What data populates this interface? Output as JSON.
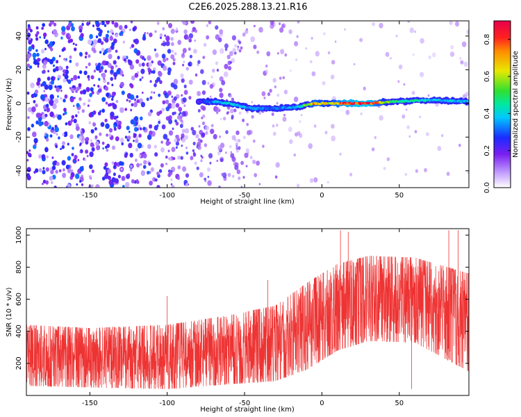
{
  "figure_title": "C2E6.2025.288.13.21.R16",
  "colors": {
    "signal": "#ee3333",
    "scatter": "#7a1ff0",
    "axis": "#000000"
  },
  "chart_data": [
    {
      "type": "heatmap",
      "xlabel": "Height of straight line (km)",
      "ylabel": "Frequency (Hz)",
      "xlim": [
        -191,
        95
      ],
      "ylim": [
        -50,
        49
      ],
      "xticks": [
        -150,
        -100,
        -50,
        0,
        50
      ],
      "yticks": [
        -40,
        -20,
        0,
        20,
        40
      ],
      "colorbar": {
        "label": "Normalized spectral amplitude",
        "range": [
          0.0,
          0.9
        ],
        "ticks": [
          0.0,
          0.2,
          0.4,
          0.6,
          0.8
        ]
      },
      "ridge": [
        {
          "x": -80,
          "freq": 1,
          "amp": 0.2
        },
        {
          "x": -70,
          "freq": 1,
          "amp": 0.35
        },
        {
          "x": -60,
          "freq": 0,
          "amp": 0.4
        },
        {
          "x": -45,
          "freq": -3,
          "amp": 0.35
        },
        {
          "x": -30,
          "freq": -3,
          "amp": 0.3
        },
        {
          "x": -15,
          "freq": -2,
          "amp": 0.4
        },
        {
          "x": -5,
          "freq": 0,
          "amp": 0.7
        },
        {
          "x": 5,
          "freq": 0,
          "amp": 0.6
        },
        {
          "x": 15,
          "freq": 0,
          "amp": 0.8
        },
        {
          "x": 30,
          "freq": 0,
          "amp": 0.85
        },
        {
          "x": 45,
          "freq": 1,
          "amp": 0.5
        },
        {
          "x": 70,
          "freq": 2,
          "amp": 0.4
        },
        {
          "x": 95,
          "freq": 1,
          "amp": 0.35
        }
      ],
      "scatter_density": [
        {
          "x": -190,
          "level": 1.0
        },
        {
          "x": -120,
          "level": 0.9
        },
        {
          "x": -75,
          "level": 0.55
        },
        {
          "x": -30,
          "level": 0.2
        },
        {
          "x": 0,
          "level": 0.05
        },
        {
          "x": 95,
          "level": 0.04
        }
      ]
    },
    {
      "type": "line",
      "xlabel": "Height of straight line (km)",
      "ylabel": "SNR (10 * v/v)",
      "xlim": [
        -191,
        95
      ],
      "ylim": [
        0,
        1040
      ],
      "xticks": [
        -150,
        -100,
        -50,
        0,
        50
      ],
      "yticks": [
        200,
        400,
        600,
        800,
        1000
      ],
      "envelope": [
        {
          "x": -191,
          "low": 60,
          "high": 440
        },
        {
          "x": -150,
          "low": 50,
          "high": 420
        },
        {
          "x": -100,
          "low": 40,
          "high": 440
        },
        {
          "x": -60,
          "low": 70,
          "high": 500
        },
        {
          "x": -30,
          "low": 90,
          "high": 560
        },
        {
          "x": -10,
          "low": 160,
          "high": 700
        },
        {
          "x": 10,
          "low": 280,
          "high": 820
        },
        {
          "x": 30,
          "low": 340,
          "high": 870
        },
        {
          "x": 60,
          "low": 330,
          "high": 860
        },
        {
          "x": 95,
          "low": 150,
          "high": 760
        }
      ],
      "spikes": [
        {
          "x": -100,
          "y": 620
        },
        {
          "x": -35,
          "y": 720
        },
        {
          "x": 12,
          "y": 1030
        },
        {
          "x": 17,
          "y": 1020
        },
        {
          "x": 82,
          "y": 1030
        },
        {
          "x": 88,
          "y": 1030
        },
        {
          "x": 58,
          "y": 40
        }
      ]
    }
  ]
}
